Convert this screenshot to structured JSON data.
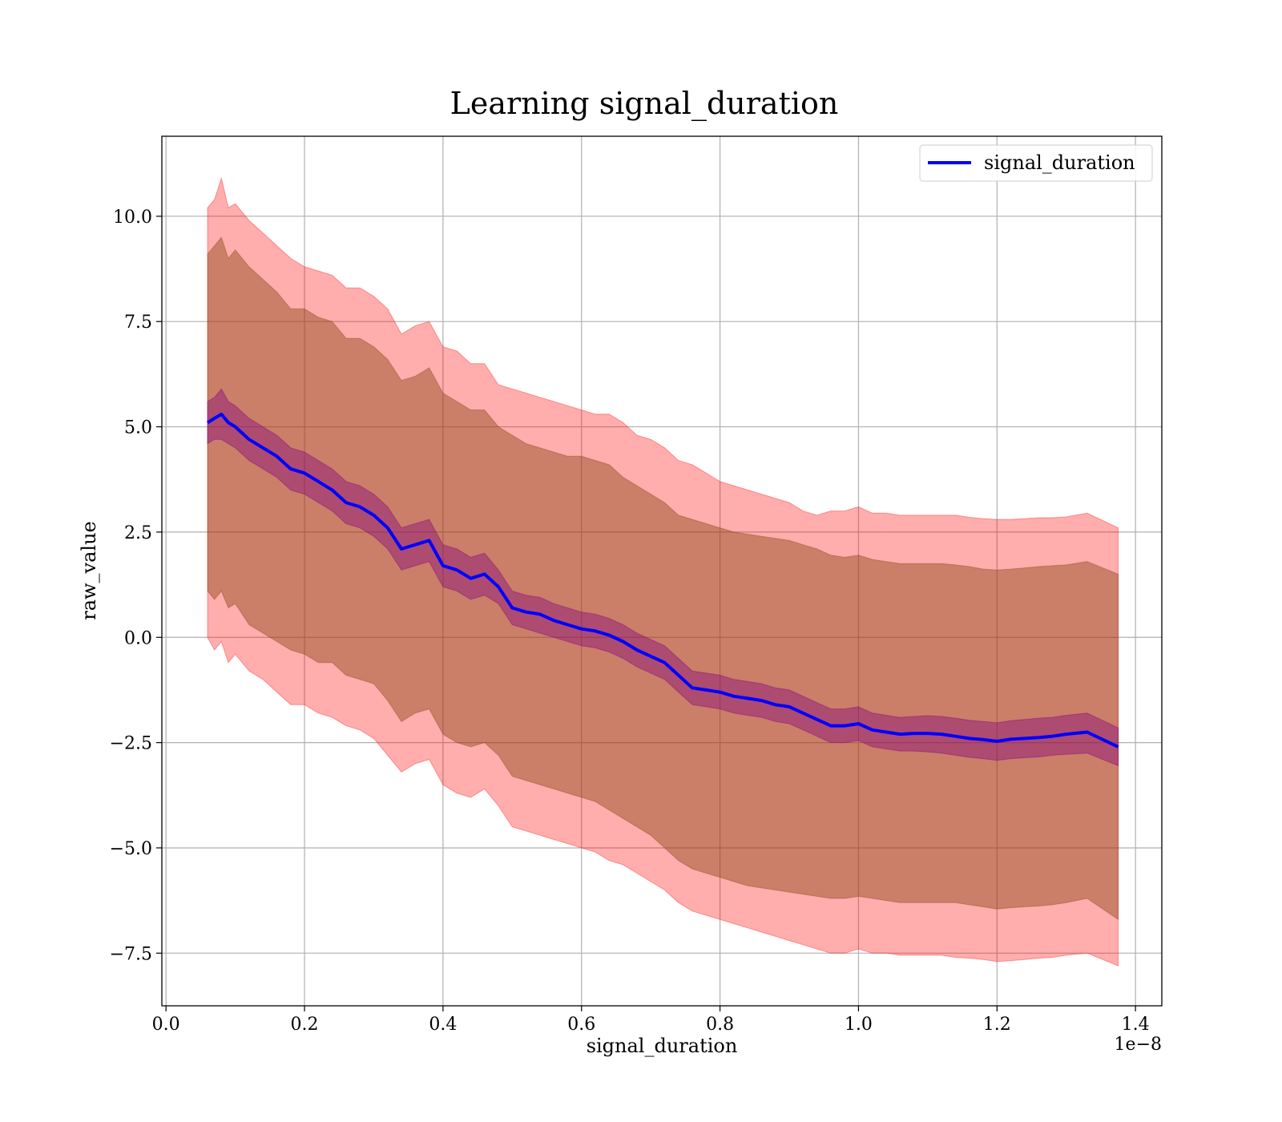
{
  "chart_data": {
    "type": "line",
    "title": "Learning signal_duration",
    "xlabel": "signal_duration",
    "ylabel": "raw_value",
    "x_offset_label": "1e−8",
    "xlim": [
      -0.006,
      1.438
    ],
    "ylim": [
      -8.75,
      11.9
    ],
    "x_ticks": [
      0.0,
      0.2,
      0.4,
      0.6,
      0.8,
      1.0,
      1.2,
      1.4
    ],
    "x_tick_labels": [
      "0.0",
      "0.2",
      "0.4",
      "0.6",
      "0.8",
      "1.0",
      "1.2",
      "1.4"
    ],
    "y_ticks": [
      10.0,
      7.5,
      5.0,
      2.5,
      0.0,
      -2.5,
      -5.0,
      -7.5
    ],
    "y_tick_labels": [
      "10.0",
      "7.5",
      "5.0",
      "2.5",
      "0.0",
      "−2.5",
      "−5.0",
      "−7.5"
    ],
    "grid": true,
    "legend_position": "top-right",
    "colors": {
      "mean_line": "#0000ff",
      "outer_band": "#ff0000",
      "inner_band": "#8b4513",
      "std_band": "#800080"
    },
    "series": [
      {
        "name": "signal_duration",
        "x": [
          0.06,
          0.07,
          0.08,
          0.09,
          0.1,
          0.12,
          0.14,
          0.16,
          0.18,
          0.2,
          0.22,
          0.24,
          0.26,
          0.28,
          0.3,
          0.32,
          0.34,
          0.36,
          0.38,
          0.4,
          0.42,
          0.44,
          0.46,
          0.48,
          0.5,
          0.52,
          0.54,
          0.56,
          0.58,
          0.6,
          0.62,
          0.64,
          0.66,
          0.68,
          0.7,
          0.72,
          0.74,
          0.76,
          0.78,
          0.8,
          0.82,
          0.84,
          0.86,
          0.88,
          0.9,
          0.92,
          0.94,
          0.96,
          0.98,
          1.0,
          1.02,
          1.04,
          1.06,
          1.08,
          1.1,
          1.12,
          1.14,
          1.16,
          1.18,
          1.2,
          1.22,
          1.24,
          1.26,
          1.28,
          1.3,
          1.33,
          1.375
        ],
        "mean": [
          5.1,
          5.2,
          5.3,
          5.1,
          5.0,
          4.7,
          4.5,
          4.3,
          4.0,
          3.9,
          3.7,
          3.5,
          3.2,
          3.1,
          2.9,
          2.6,
          2.1,
          2.2,
          2.3,
          1.7,
          1.6,
          1.4,
          1.5,
          1.2,
          0.7,
          0.6,
          0.55,
          0.4,
          0.3,
          0.2,
          0.15,
          0.05,
          -0.1,
          -0.3,
          -0.45,
          -0.6,
          -0.9,
          -1.2,
          -1.25,
          -1.3,
          -1.4,
          -1.45,
          -1.5,
          -1.6,
          -1.65,
          -1.8,
          -1.95,
          -2.1,
          -2.1,
          -2.05,
          -2.2,
          -2.25,
          -2.3,
          -2.28,
          -2.28,
          -2.3,
          -2.35,
          -2.4,
          -2.43,
          -2.47,
          -2.42,
          -2.4,
          -2.38,
          -2.35,
          -2.3,
          -2.25,
          -2.6
        ],
        "std_band_lower": [
          4.6,
          4.7,
          4.7,
          4.6,
          4.5,
          4.2,
          4.0,
          3.8,
          3.5,
          3.4,
          3.2,
          3.0,
          2.7,
          2.6,
          2.4,
          2.1,
          1.6,
          1.7,
          1.8,
          1.2,
          1.1,
          0.9,
          1.0,
          0.8,
          0.3,
          0.2,
          0.1,
          0.0,
          -0.1,
          -0.2,
          -0.25,
          -0.35,
          -0.5,
          -0.7,
          -0.85,
          -1.0,
          -1.3,
          -1.6,
          -1.65,
          -1.7,
          -1.8,
          -1.85,
          -1.9,
          -2.0,
          -2.05,
          -2.2,
          -2.35,
          -2.5,
          -2.5,
          -2.45,
          -2.6,
          -2.65,
          -2.7,
          -2.7,
          -2.72,
          -2.75,
          -2.8,
          -2.85,
          -2.88,
          -2.92,
          -2.88,
          -2.86,
          -2.84,
          -2.8,
          -2.78,
          -2.75,
          -3.05
        ],
        "std_band_upper": [
          5.6,
          5.7,
          5.9,
          5.6,
          5.5,
          5.2,
          5.0,
          4.8,
          4.5,
          4.4,
          4.2,
          4.0,
          3.7,
          3.6,
          3.4,
          3.1,
          2.6,
          2.7,
          2.8,
          2.2,
          2.1,
          1.9,
          2.0,
          1.6,
          1.1,
          1.0,
          0.95,
          0.8,
          0.7,
          0.6,
          0.55,
          0.45,
          0.3,
          0.1,
          -0.05,
          -0.2,
          -0.5,
          -0.8,
          -0.85,
          -0.9,
          -1.0,
          -1.05,
          -1.1,
          -1.2,
          -1.25,
          -1.4,
          -1.55,
          -1.7,
          -1.7,
          -1.65,
          -1.8,
          -1.85,
          -1.9,
          -1.88,
          -1.86,
          -1.88,
          -1.92,
          -1.97,
          -2.0,
          -2.03,
          -1.98,
          -1.95,
          -1.92,
          -1.9,
          -1.85,
          -1.8,
          -2.15
        ],
        "band_outer_lower": [
          0.0,
          -0.3,
          -0.1,
          -0.6,
          -0.4,
          -0.8,
          -1.0,
          -1.3,
          -1.6,
          -1.6,
          -1.8,
          -1.9,
          -2.1,
          -2.2,
          -2.4,
          -2.8,
          -3.2,
          -3.0,
          -2.9,
          -3.5,
          -3.7,
          -3.8,
          -3.6,
          -4.0,
          -4.5,
          -4.6,
          -4.7,
          -4.8,
          -4.9,
          -5.0,
          -5.1,
          -5.3,
          -5.4,
          -5.6,
          -5.8,
          -6.0,
          -6.3,
          -6.5,
          -6.6,
          -6.7,
          -6.8,
          -6.9,
          -7.0,
          -7.1,
          -7.2,
          -7.3,
          -7.4,
          -7.5,
          -7.5,
          -7.4,
          -7.5,
          -7.5,
          -7.55,
          -7.55,
          -7.55,
          -7.55,
          -7.6,
          -7.62,
          -7.65,
          -7.7,
          -7.68,
          -7.65,
          -7.62,
          -7.6,
          -7.55,
          -7.5,
          -7.8
        ],
        "band_outer_upper": [
          10.2,
          10.4,
          10.9,
          10.2,
          10.3,
          9.9,
          9.6,
          9.3,
          9.0,
          8.8,
          8.7,
          8.6,
          8.3,
          8.3,
          8.1,
          7.8,
          7.2,
          7.4,
          7.5,
          6.9,
          6.8,
          6.5,
          6.5,
          6.0,
          5.9,
          5.8,
          5.7,
          5.6,
          5.5,
          5.4,
          5.3,
          5.3,
          5.1,
          4.8,
          4.7,
          4.5,
          4.2,
          4.1,
          3.9,
          3.7,
          3.6,
          3.5,
          3.4,
          3.3,
          3.2,
          3.0,
          2.9,
          3.0,
          3.0,
          3.1,
          2.95,
          2.95,
          2.9,
          2.9,
          2.9,
          2.9,
          2.9,
          2.85,
          2.82,
          2.8,
          2.8,
          2.82,
          2.84,
          2.84,
          2.86,
          2.95,
          2.6
        ],
        "band_inner_lower": [
          1.1,
          0.9,
          1.1,
          0.7,
          0.8,
          0.3,
          0.1,
          -0.1,
          -0.3,
          -0.4,
          -0.6,
          -0.6,
          -0.9,
          -1.0,
          -1.1,
          -1.5,
          -2.0,
          -1.8,
          -1.7,
          -2.3,
          -2.5,
          -2.6,
          -2.5,
          -2.8,
          -3.3,
          -3.4,
          -3.5,
          -3.6,
          -3.7,
          -3.8,
          -3.9,
          -4.1,
          -4.3,
          -4.5,
          -4.7,
          -5.0,
          -5.3,
          -5.5,
          -5.6,
          -5.7,
          -5.8,
          -5.9,
          -5.95,
          -6.0,
          -6.05,
          -6.1,
          -6.15,
          -6.2,
          -6.2,
          -6.15,
          -6.2,
          -6.25,
          -6.3,
          -6.3,
          -6.3,
          -6.3,
          -6.3,
          -6.35,
          -6.4,
          -6.45,
          -6.42,
          -6.4,
          -6.38,
          -6.35,
          -6.3,
          -6.2,
          -6.7
        ],
        "band_inner_upper": [
          9.1,
          9.3,
          9.5,
          9.0,
          9.2,
          8.8,
          8.5,
          8.2,
          7.8,
          7.8,
          7.6,
          7.5,
          7.1,
          7.1,
          6.9,
          6.6,
          6.1,
          6.2,
          6.4,
          5.8,
          5.6,
          5.4,
          5.4,
          5.0,
          4.8,
          4.6,
          4.5,
          4.4,
          4.3,
          4.3,
          4.2,
          4.1,
          3.8,
          3.6,
          3.4,
          3.2,
          2.9,
          2.8,
          2.7,
          2.6,
          2.5,
          2.45,
          2.4,
          2.35,
          2.3,
          2.2,
          2.1,
          1.95,
          1.9,
          1.95,
          1.85,
          1.8,
          1.75,
          1.75,
          1.75,
          1.75,
          1.72,
          1.68,
          1.62,
          1.6,
          1.62,
          1.65,
          1.68,
          1.7,
          1.72,
          1.8,
          1.5
        ]
      }
    ]
  }
}
